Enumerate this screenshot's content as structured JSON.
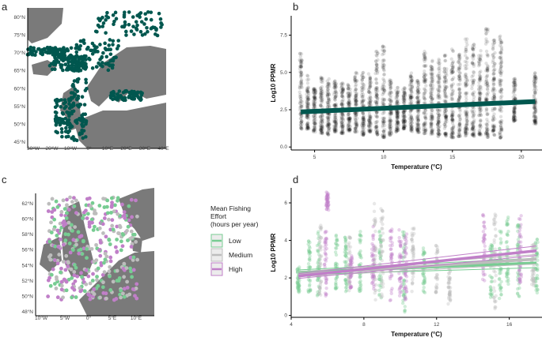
{
  "panels": {
    "a": "a",
    "b": "b",
    "c": "c",
    "d": "d"
  },
  "map_a": {
    "lat_ticks": [
      "80°N",
      "75°N",
      "70°N",
      "65°N",
      "60°N",
      "55°N",
      "50°N",
      "45°N"
    ],
    "lon_ticks": [
      "30°W",
      "20°W",
      "10°W",
      "0°",
      "10°E",
      "20°E",
      "30°E",
      "40°E"
    ],
    "point_color": "#00574f",
    "land_color": "#7a7a7a"
  },
  "map_c": {
    "lat_ticks": [
      "62°N",
      "60°N",
      "58°N",
      "56°N",
      "54°N",
      "52°N",
      "50°N",
      "48°N"
    ],
    "lon_ticks": [
      "10°W",
      "5°W",
      "0°",
      "5°E",
      "10°E"
    ]
  },
  "legend": {
    "title": [
      "Mean Fishing",
      "Effort",
      "(hours per year)"
    ],
    "items": [
      {
        "label": "Low",
        "color": "#77cc92"
      },
      {
        "label": "Medium",
        "color": "#bdbdbd"
      },
      {
        "label": "High",
        "color": "#c07fc8"
      }
    ]
  },
  "chart_data": [
    {
      "type": "scatter",
      "panel": "b",
      "xlabel": "Temperature (°C)",
      "ylabel": "Log10 PPMR",
      "xlim": [
        3.3,
        21.5
      ],
      "ylim": [
        -0.2,
        8.8
      ],
      "xticks": [
        5,
        10,
        15,
        20
      ],
      "yticks": [
        "0.0",
        "2.5",
        "5.0",
        "7.5"
      ],
      "grid": false,
      "point_color": "#000000",
      "fit_color": "#00574f",
      "fit": {
        "x": [
          4,
          21
        ],
        "y": [
          2.35,
          3.05
        ]
      },
      "columns": [
        [
          4,
          1.2,
          6.3
        ],
        [
          4.5,
          1.2,
          4.8
        ],
        [
          5,
          1,
          4
        ],
        [
          5.5,
          0.9,
          4.8
        ],
        [
          6,
          0.8,
          4.6
        ],
        [
          6.5,
          1,
          4.5
        ],
        [
          7,
          0.9,
          4.3
        ],
        [
          7.5,
          1,
          4.3
        ],
        [
          8,
          1,
          5
        ],
        [
          8.5,
          0.8,
          5
        ],
        [
          9,
          1,
          5
        ],
        [
          9.5,
          0.8,
          6.5
        ],
        [
          10,
          0.6,
          6.8
        ],
        [
          10.5,
          0.8,
          4.6
        ],
        [
          11,
          1,
          4
        ],
        [
          11.5,
          1.2,
          4
        ],
        [
          12,
          1,
          5
        ],
        [
          12.5,
          0.9,
          4.5
        ],
        [
          13,
          0.9,
          6.7
        ],
        [
          13.5,
          0.8,
          5.8
        ],
        [
          14,
          0.7,
          5.9
        ],
        [
          14.5,
          0.7,
          6.2
        ],
        [
          15,
          0.6,
          6.8
        ],
        [
          15.5,
          0.7,
          6.5
        ],
        [
          16,
          0.7,
          7.3
        ],
        [
          16.5,
          0.7,
          6.9
        ],
        [
          17,
          0.8,
          6.7
        ],
        [
          17.5,
          0.6,
          8
        ],
        [
          18,
          0.8,
          7.2
        ],
        [
          18.5,
          0.6,
          7.5
        ],
        [
          19.5,
          1.7,
          4.6
        ],
        [
          21,
          1.5,
          5
        ]
      ]
    },
    {
      "type": "scatter",
      "panel": "d",
      "xlabel": "Temperature (°C)",
      "ylabel": "Log10 PPMR",
      "xlim": [
        4,
        17.8
      ],
      "ylim": [
        -0.1,
        6.8
      ],
      "xticks": [
        4,
        8,
        12,
        16
      ],
      "yticks": [
        "0",
        "2",
        "4",
        "6"
      ],
      "grid": false,
      "series": [
        {
          "name": "Low",
          "color": "#77cc92",
          "fit": {
            "x": [
              4.4,
              17.5
            ],
            "y": [
              2.3,
              2.8
            ]
          },
          "columns": [
            [
              4.4,
              1.1,
              2.7
            ],
            [
              5,
              1.2,
              4
            ],
            [
              5.5,
              1,
              4.5
            ],
            [
              6.5,
              1.3,
              4.3
            ],
            [
              7,
              1.2,
              4.2
            ],
            [
              7.8,
              1,
              4.5
            ],
            [
              8.9,
              0.8,
              4.5
            ],
            [
              10.2,
              0.1,
              4.6
            ],
            [
              11.3,
              1.2,
              3.6
            ],
            [
              15,
              0.8,
              3.8
            ],
            [
              15.5,
              0.9,
              4.5
            ],
            [
              15.9,
              1.6,
              5.3
            ],
            [
              16.5,
              1,
              5
            ],
            [
              17.5,
              1.2,
              4.2
            ]
          ]
        },
        {
          "name": "Medium",
          "color": "#bdbdbd",
          "fit": {
            "x": [
              4.4,
              17.5
            ],
            "y": [
              2.2,
              3.0
            ]
          },
          "columns": [
            [
              5.6,
              0.9,
              5
            ],
            [
              7.2,
              1.3,
              4.2
            ],
            [
              8.6,
              0.8,
              6
            ],
            [
              9,
              0.8,
              6
            ],
            [
              10.7,
              1.2,
              4.8
            ],
            [
              12,
              1.2,
              3.8
            ],
            [
              12.7,
              0.6,
              2.5
            ],
            [
              15.2,
              0.3,
              5.5
            ],
            [
              17.3,
              1.5,
              3.8
            ]
          ]
        },
        {
          "name": "High",
          "color": "#c07fc8",
          "fit": {
            "x": [
              4.4,
              17.5
            ],
            "y": [
              2.1,
              3.45
            ]
          },
          "columns": [
            [
              5.9,
              1,
              4.6
            ],
            [
              6,
              5.6,
              6.6
            ],
            [
              7.3,
              1.4,
              3.3
            ],
            [
              8.5,
              1.3,
              5
            ],
            [
              9.5,
              0.7,
              4.7
            ],
            [
              10,
              0.7,
              4.6
            ],
            [
              10.3,
              0.8,
              4.7
            ],
            [
              14.6,
              1.7,
              5.6
            ],
            [
              16.6,
              1.6,
              5.4
            ]
          ]
        }
      ]
    }
  ]
}
